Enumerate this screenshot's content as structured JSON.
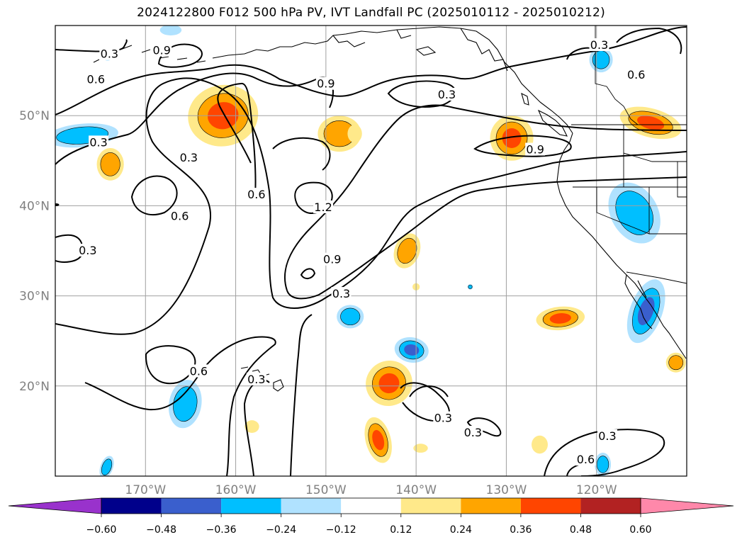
{
  "title": "2024122800 F012 500 hPa PV, IVT Landfall PC (2025010112 - 2025010212)",
  "map": {
    "lon_range": [
      -180,
      -110
    ],
    "lat_range": [
      10,
      60
    ],
    "lon_ticks": [
      {
        "value": -170,
        "label": "170°W"
      },
      {
        "value": -160,
        "label": "160°W"
      },
      {
        "value": -150,
        "label": "150°W"
      },
      {
        "value": -140,
        "label": "140°W"
      },
      {
        "value": -130,
        "label": "130°W"
      },
      {
        "value": -120,
        "label": "120°W"
      }
    ],
    "lat_ticks": [
      {
        "value": 20,
        "label": "20°N"
      },
      {
        "value": 30,
        "label": "30°N"
      },
      {
        "value": 40,
        "label": "40°N"
      },
      {
        "value": 50,
        "label": "50°N"
      }
    ],
    "grid": true
  },
  "colorbar": {
    "labels": [
      "−0.60",
      "−0.48",
      "−0.36",
      "−0.24",
      "−0.12",
      "0.12",
      "0.24",
      "0.36",
      "0.48",
      "0.60"
    ],
    "colors": [
      "#9932cc",
      "#00008b",
      "#3a5fcd",
      "#00bfff",
      "#b0e2ff",
      "#ffffff",
      "#ffe98a",
      "#ffa500",
      "#ff4500",
      "#b22222",
      "#ff88aa"
    ]
  },
  "contour_labels": [
    {
      "text": "0.3",
      "lon": -174,
      "lat": 56.8
    },
    {
      "text": "0.9",
      "lon": -168.2,
      "lat": 57.2
    },
    {
      "text": "0.6",
      "lon": -175.5,
      "lat": 54
    },
    {
      "text": "0.3",
      "lon": -175.2,
      "lat": 47
    },
    {
      "text": "0.9",
      "lon": -150,
      "lat": 53.5
    },
    {
      "text": "0.3",
      "lon": -136.6,
      "lat": 52.3
    },
    {
      "text": "0.3",
      "lon": -119.7,
      "lat": 57.8
    },
    {
      "text": "0.6",
      "lon": -115.6,
      "lat": 54.5
    },
    {
      "text": "0.3",
      "lon": -165.2,
      "lat": 45.3
    },
    {
      "text": "0.6",
      "lon": -157.7,
      "lat": 41.2
    },
    {
      "text": "1.2",
      "lon": -150.3,
      "lat": 39.8
    },
    {
      "text": "0.6",
      "lon": -166.2,
      "lat": 38.8
    },
    {
      "text": "0.9",
      "lon": -126.8,
      "lat": 46.2
    },
    {
      "text": "0.3",
      "lon": -176.4,
      "lat": 35
    },
    {
      "text": "0.9",
      "lon": -149.3,
      "lat": 34
    },
    {
      "text": "0.3",
      "lon": -148.3,
      "lat": 30.2
    },
    {
      "text": "0.6",
      "lon": -164.1,
      "lat": 21.6
    },
    {
      "text": "0.3",
      "lon": -157.7,
      "lat": 20.7
    },
    {
      "text": "0.3",
      "lon": -137,
      "lat": 16.4
    },
    {
      "text": "0.3",
      "lon": -133.7,
      "lat": 14.8
    },
    {
      "text": "0.3",
      "lon": -118.8,
      "lat": 14.4
    },
    {
      "text": "0.6",
      "lon": -121.2,
      "lat": 11.8
    }
  ],
  "blobs": [
    {
      "lon": -161.4,
      "lat": 50,
      "rx": 3.9,
      "ry": 3.4,
      "rot": -10,
      "level": 3
    },
    {
      "lon": -173.9,
      "lat": 44.6,
      "rx": 1.5,
      "ry": 1.8,
      "rot": 0,
      "level": 2
    },
    {
      "lon": -148.5,
      "lat": 48,
      "rx": 2.4,
      "ry": 2.0,
      "rot": 0,
      "level": 2
    },
    {
      "lon": -146.8,
      "lat": 48,
      "rx": 0.8,
      "ry": 1.0,
      "rot": 0,
      "level": 1
    },
    {
      "lon": -129.4,
      "lat": 47.5,
      "rx": 2.4,
      "ry": 2.5,
      "rot": 0,
      "level": 3
    },
    {
      "lon": -114,
      "lat": 49.2,
      "rx": 3.5,
      "ry": 1.6,
      "rot": 15,
      "level": 3
    },
    {
      "lon": -141,
      "lat": 35,
      "rx": 1.4,
      "ry": 2.0,
      "rot": 20,
      "level": 2
    },
    {
      "lon": -143,
      "lat": 20.3,
      "rx": 2.6,
      "ry": 2.5,
      "rot": -25,
      "level": 3
    },
    {
      "lon": -144.2,
      "lat": 14,
      "rx": 1.4,
      "ry": 2.6,
      "rot": -15,
      "level": 3
    },
    {
      "lon": -124,
      "lat": 27.5,
      "rx": 2.7,
      "ry": 1.3,
      "rot": -5,
      "level": 3
    },
    {
      "lon": -158.2,
      "lat": 15.5,
      "rx": 0.8,
      "ry": 0.7,
      "rot": 0,
      "level": 1
    },
    {
      "lon": -140,
      "lat": 31,
      "rx": 0.4,
      "ry": 0.4,
      "rot": 0,
      "level": 1
    },
    {
      "lon": -139.5,
      "lat": 13.1,
      "rx": 0.8,
      "ry": 0.5,
      "rot": 0,
      "level": 1
    },
    {
      "lon": -126.3,
      "lat": 13.5,
      "rx": 0.9,
      "ry": 1.0,
      "rot": 0,
      "level": 1
    },
    {
      "lon": -111.2,
      "lat": 22.6,
      "rx": 1.1,
      "ry": 1.1,
      "rot": 0,
      "level": 2
    },
    {
      "lon": -177,
      "lat": 47.8,
      "rx": 4.0,
      "ry": 1.3,
      "rot": -5,
      "level": -2
    },
    {
      "lon": -174.2,
      "lat": 56.7,
      "rx": 0.6,
      "ry": 0.6,
      "rot": 0,
      "level": -1
    },
    {
      "lon": -167.2,
      "lat": 59.5,
      "rx": 1.2,
      "ry": 0.6,
      "rot": 0,
      "level": -1
    },
    {
      "lon": -119.5,
      "lat": 56.2,
      "rx": 1.3,
      "ry": 1.4,
      "rot": 0,
      "level": -2
    },
    {
      "lon": -115.8,
      "lat": 39.2,
      "rx": 2.6,
      "ry": 3.6,
      "rot": -30,
      "level": -2
    },
    {
      "lon": -114.5,
      "lat": 28.3,
      "rx": 1.8,
      "ry": 3.7,
      "rot": 20,
      "level": -3
    },
    {
      "lon": -147.3,
      "lat": 27.7,
      "rx": 1.5,
      "ry": 1.3,
      "rot": 0,
      "level": -2
    },
    {
      "lon": -140.5,
      "lat": 24,
      "rx": 1.9,
      "ry": 1.4,
      "rot": 10,
      "level": -3
    },
    {
      "lon": -165.6,
      "lat": 18,
      "rx": 1.8,
      "ry": 2.7,
      "rot": 10,
      "level": -2
    },
    {
      "lon": -174.3,
      "lat": 11,
      "rx": 0.7,
      "ry": 1.3,
      "rot": 20,
      "level": -2
    },
    {
      "lon": -119.3,
      "lat": 11.3,
      "rx": 0.9,
      "ry": 1.3,
      "rot": 0,
      "level": -2
    },
    {
      "lon": -134,
      "lat": 31,
      "rx": 0.3,
      "ry": 0.3,
      "rot": 0,
      "level": -2
    }
  ]
}
